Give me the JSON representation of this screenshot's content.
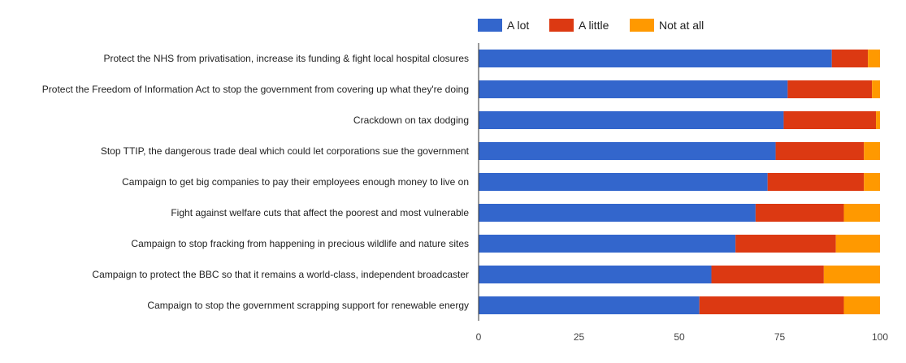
{
  "chart_data": {
    "type": "bar",
    "orientation": "horizontal",
    "stacked": true,
    "categories": [
      "Protect the NHS from privatisation, increase its funding & fight local hospital closures",
      "Protect the Freedom of Information Act to stop the government from covering up what they're doing",
      "Crackdown on tax dodging",
      "Stop TTIP, the dangerous trade deal which could let corporations sue the government",
      "Campaign to get big companies to pay their employees enough money to live on",
      "Fight against welfare cuts that affect the poorest and most vulnerable",
      "Campaign to stop fracking from happening in precious wildlife and nature sites",
      "Campaign to protect the BBC so that it remains a world-class, independent broadcaster",
      "Campaign to stop the government scrapping support for renewable energy"
    ],
    "series": [
      {
        "name": "A lot",
        "color": "#3366cc",
        "values": [
          88,
          77,
          76,
          74,
          72,
          69,
          64,
          58,
          55
        ]
      },
      {
        "name": "A little",
        "color": "#dc3912",
        "values": [
          9,
          21,
          23,
          22,
          24,
          22,
          25,
          28,
          36
        ]
      },
      {
        "name": "Not at all",
        "color": "#ff9900",
        "values": [
          3,
          2,
          1,
          4,
          4,
          9,
          11,
          14,
          9
        ]
      }
    ],
    "xlim": [
      0,
      100
    ],
    "xticks": [
      0,
      25,
      50,
      75,
      100
    ],
    "title": "",
    "xlabel": "",
    "ylabel": "",
    "legend_position": "top",
    "grid": false
  }
}
